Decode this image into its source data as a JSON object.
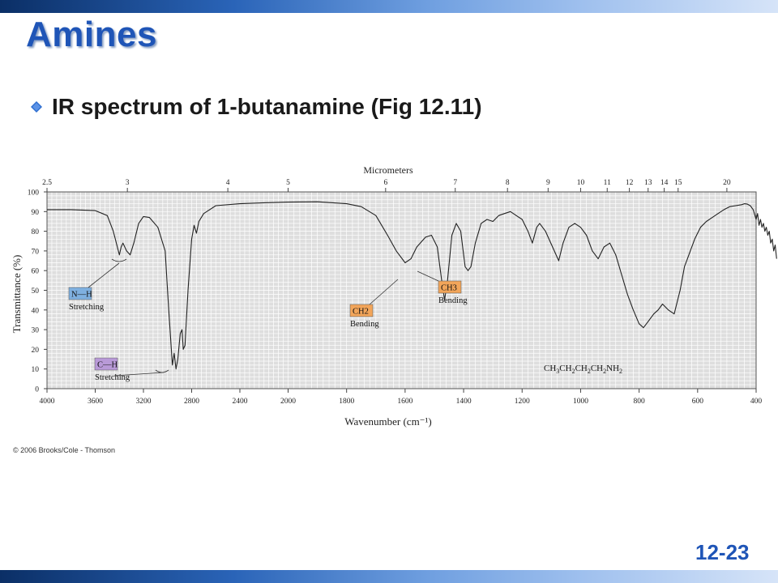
{
  "slide": {
    "title": "Amines",
    "bullet": "IR spectrum of 1-butanamine (Fig 12.11)",
    "copyright": "© 2006 Brooks/Cole - Thomson",
    "page_number": "12-23",
    "colors": {
      "title": "#1f55b7",
      "bullet": "#2f6fd0",
      "band_dark": "#0b2f66",
      "band_light": "#d6e4f8"
    }
  },
  "chart_data": {
    "type": "line",
    "title": "",
    "top_axis_label": "Micrometers",
    "top_ticks": [
      "2.5",
      "3",
      "4",
      "5",
      "6",
      "7",
      "8",
      "9",
      "10",
      "11",
      "12",
      "13",
      "14",
      "15",
      "20"
    ],
    "xlabel": "Wavenumber (cm⁻¹)",
    "ylabel": "Transmittance (%)",
    "x_ticks": [
      "4000",
      "3600",
      "3200",
      "2800",
      "2400",
      "2000",
      "1800",
      "1600",
      "1400",
      "1200",
      "1000",
      "800",
      "600",
      "400"
    ],
    "y_ticks": [
      "0",
      "10",
      "20",
      "30",
      "40",
      "50",
      "60",
      "70",
      "80",
      "90",
      "100"
    ],
    "ylim": [
      0,
      100
    ],
    "grid": true,
    "series": [
      {
        "points": [
          [
            4000,
            91
          ],
          [
            3800,
            91
          ],
          [
            3600,
            90.5
          ],
          [
            3500,
            88
          ],
          [
            3450,
            80
          ],
          [
            3400,
            68
          ],
          [
            3385,
            72
          ],
          [
            3370,
            74
          ],
          [
            3340,
            70
          ],
          [
            3310,
            68
          ],
          [
            3280,
            74
          ],
          [
            3240,
            84
          ],
          [
            3200,
            87.5
          ],
          [
            3150,
            87
          ],
          [
            3080,
            82
          ],
          [
            3020,
            70
          ],
          [
            2990,
            40
          ],
          [
            2960,
            12
          ],
          [
            2945,
            18
          ],
          [
            2930,
            10
          ],
          [
            2915,
            15
          ],
          [
            2895,
            28
          ],
          [
            2880,
            30
          ],
          [
            2870,
            20
          ],
          [
            2855,
            22
          ],
          [
            2830,
            50
          ],
          [
            2800,
            76
          ],
          [
            2780,
            83
          ],
          [
            2760,
            79
          ],
          [
            2740,
            85
          ],
          [
            2700,
            89
          ],
          [
            2600,
            93
          ],
          [
            2400,
            94
          ],
          [
            2200,
            94.5
          ],
          [
            2000,
            94.8
          ],
          [
            1900,
            95
          ],
          [
            1800,
            94
          ],
          [
            1750,
            92.5
          ],
          [
            1700,
            88
          ],
          [
            1660,
            78
          ],
          [
            1630,
            70
          ],
          [
            1600,
            64
          ],
          [
            1580,
            66
          ],
          [
            1560,
            72
          ],
          [
            1530,
            77
          ],
          [
            1510,
            78
          ],
          [
            1490,
            72
          ],
          [
            1475,
            55
          ],
          [
            1465,
            45
          ],
          [
            1455,
            55
          ],
          [
            1440,
            78
          ],
          [
            1425,
            84
          ],
          [
            1410,
            80
          ],
          [
            1395,
            62
          ],
          [
            1385,
            60
          ],
          [
            1375,
            62
          ],
          [
            1360,
            74
          ],
          [
            1340,
            84
          ],
          [
            1320,
            86
          ],
          [
            1300,
            85
          ],
          [
            1280,
            88
          ],
          [
            1260,
            89
          ],
          [
            1240,
            90
          ],
          [
            1220,
            88
          ],
          [
            1200,
            86
          ],
          [
            1180,
            80
          ],
          [
            1165,
            74
          ],
          [
            1150,
            82
          ],
          [
            1140,
            84
          ],
          [
            1120,
            80
          ],
          [
            1090,
            70
          ],
          [
            1075,
            65
          ],
          [
            1060,
            74
          ],
          [
            1040,
            82
          ],
          [
            1020,
            84
          ],
          [
            1000,
            82
          ],
          [
            980,
            78
          ],
          [
            960,
            70
          ],
          [
            940,
            66
          ],
          [
            920,
            72
          ],
          [
            900,
            74
          ],
          [
            880,
            68
          ],
          [
            860,
            58
          ],
          [
            840,
            48
          ],
          [
            820,
            40
          ],
          [
            800,
            33
          ],
          [
            785,
            31
          ],
          [
            770,
            34
          ],
          [
            750,
            38
          ],
          [
            735,
            40
          ],
          [
            720,
            43
          ],
          [
            700,
            40
          ],
          [
            680,
            38
          ],
          [
            660,
            50
          ],
          [
            645,
            62
          ],
          [
            630,
            68
          ],
          [
            610,
            76
          ],
          [
            590,
            82
          ],
          [
            570,
            85
          ],
          [
            550,
            87
          ],
          [
            530,
            89
          ],
          [
            510,
            91
          ],
          [
            490,
            92.5
          ],
          [
            470,
            93
          ],
          [
            450,
            93.5
          ],
          [
            440,
            94
          ],
          [
            430,
            93.8
          ],
          [
            420,
            93
          ],
          [
            410,
            91
          ],
          [
            400,
            86
          ],
          [
            395,
            89
          ],
          [
            390,
            83
          ],
          [
            385,
            86
          ],
          [
            380,
            82
          ],
          [
            375,
            84
          ],
          [
            370,
            80
          ],
          [
            365,
            82
          ],
          [
            360,
            78
          ],
          [
            355,
            80
          ],
          [
            350,
            74
          ],
          [
            345,
            76
          ],
          [
            340,
            70
          ],
          [
            335,
            73
          ],
          [
            330,
            66
          ]
        ]
      }
    ],
    "annotations": [
      {
        "label_lines": [
          "N—H",
          "Stretching"
        ],
        "box_color": "#7fb0e0"
      },
      {
        "label_lines": [
          "C—H",
          "Stretching"
        ],
        "box_color": "#b99ad8"
      },
      {
        "label_lines": [
          "CH2",
          "Bending"
        ],
        "box_color": "#f2a55a"
      },
      {
        "label_lines": [
          "CH3",
          "Bending"
        ],
        "box_color": "#f2a55a"
      }
    ],
    "formula": "CH3CH2CH2CH2NH2"
  }
}
